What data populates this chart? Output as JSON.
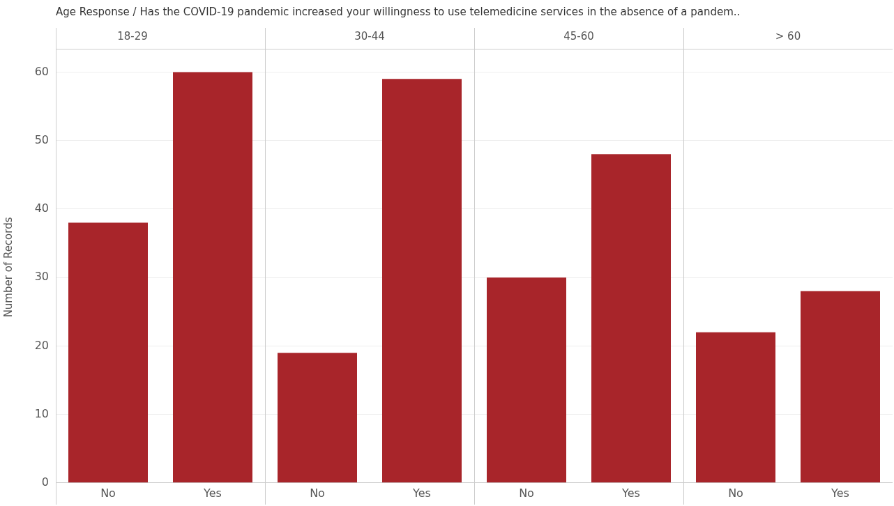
{
  "chart_data": [
    {
      "type": "other",
      "title": "Age Response  /  Has the COVID-19 pandemic increased your willingness to use telemedicine services in the absence of a pandem.."
    },
    {
      "type": "bar",
      "title": "18-29",
      "ylabel": "Number of Records",
      "categories": [
        "No",
        "Yes"
      ],
      "values": [
        38,
        60
      ],
      "color": "#a8252a",
      "ylim": [
        0,
        63
      ],
      "yticks": [
        0,
        10,
        20,
        30,
        40,
        50,
        60
      ],
      "grid": "y"
    },
    {
      "type": "bar",
      "title": "30-44",
      "categories": [
        "No",
        "Yes"
      ],
      "values": [
        19,
        59
      ],
      "color": "#a8252a",
      "ylim": [
        0,
        63
      ],
      "yticks": [
        0,
        10,
        20,
        30,
        40,
        50,
        60
      ],
      "grid": "y",
      "tick_labels": "x"
    },
    {
      "type": "bar",
      "title": "45-60",
      "categories": [
        "No",
        "Yes"
      ],
      "values": [
        30,
        48
      ],
      "color": "#a8252a",
      "ylim": [
        0,
        63
      ],
      "yticks": [
        0,
        10,
        20,
        30,
        40,
        50,
        60
      ],
      "grid": "y",
      "tick_labels": "x"
    },
    {
      "type": "bar",
      "title": "> 60",
      "categories": [
        "No",
        "Yes"
      ],
      "values": [
        22,
        28
      ],
      "color": "#a8252a",
      "ylim": [
        0,
        63
      ],
      "yticks": [
        0,
        10,
        20,
        30,
        40,
        50,
        60
      ],
      "grid": "y",
      "tick_labels": "x"
    }
  ]
}
